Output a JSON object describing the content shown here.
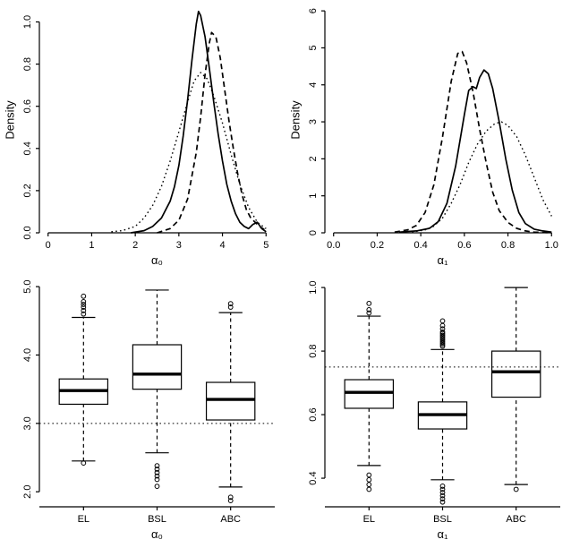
{
  "figure": {
    "background": "#ffffff",
    "line_color": "#000000",
    "grid": "off",
    "legend": "none"
  },
  "chart_data": [
    {
      "type": "line",
      "panel": "top-left",
      "title": "",
      "xlabel": "α₀",
      "ylabel": "Density",
      "xlim": [
        -0.2,
        5.2
      ],
      "ylim": [
        0,
        1.07
      ],
      "xticks": {
        "values": [
          0,
          1,
          2,
          3,
          4,
          5
        ],
        "labels": [
          "0",
          "1",
          "2",
          "3",
          "4",
          "5"
        ]
      },
      "yticks": {
        "values": [
          0,
          0.2,
          0.4,
          0.6,
          0.8,
          1.0
        ],
        "labels": [
          "0.0",
          "0.2",
          "0.4",
          "0.6",
          "0.8",
          "1.0"
        ]
      },
      "series": [
        {
          "name": "solid",
          "style": "solid",
          "points": [
            [
              1.9,
              0
            ],
            [
              2.2,
              0.01
            ],
            [
              2.4,
              0.03
            ],
            [
              2.6,
              0.07
            ],
            [
              2.8,
              0.15
            ],
            [
              2.9,
              0.22
            ],
            [
              3.0,
              0.32
            ],
            [
              3.1,
              0.46
            ],
            [
              3.2,
              0.63
            ],
            [
              3.3,
              0.82
            ],
            [
              3.4,
              0.99
            ],
            [
              3.45,
              1.05
            ],
            [
              3.5,
              1.03
            ],
            [
              3.6,
              0.93
            ],
            [
              3.7,
              0.78
            ],
            [
              3.8,
              0.62
            ],
            [
              3.9,
              0.47
            ],
            [
              4.0,
              0.34
            ],
            [
              4.1,
              0.23
            ],
            [
              4.2,
              0.15
            ],
            [
              4.3,
              0.09
            ],
            [
              4.4,
              0.05
            ],
            [
              4.5,
              0.03
            ],
            [
              4.6,
              0.02
            ],
            [
              4.7,
              0.04
            ],
            [
              4.8,
              0.05
            ],
            [
              4.9,
              0.02
            ],
            [
              5.0,
              0.005
            ]
          ]
        },
        {
          "name": "dashed",
          "style": "dashed",
          "points": [
            [
              2.5,
              0
            ],
            [
              2.8,
              0.02
            ],
            [
              3.0,
              0.06
            ],
            [
              3.2,
              0.16
            ],
            [
              3.4,
              0.38
            ],
            [
              3.5,
              0.55
            ],
            [
              3.6,
              0.75
            ],
            [
              3.7,
              0.9
            ],
            [
              3.75,
              0.95
            ],
            [
              3.85,
              0.93
            ],
            [
              3.95,
              0.83
            ],
            [
              4.05,
              0.68
            ],
            [
              4.15,
              0.53
            ],
            [
              4.25,
              0.4
            ],
            [
              4.35,
              0.28
            ],
            [
              4.45,
              0.18
            ],
            [
              4.55,
              0.11
            ],
            [
              4.65,
              0.07
            ],
            [
              4.75,
              0.05
            ],
            [
              4.85,
              0.03
            ],
            [
              5.0,
              0.01
            ]
          ]
        },
        {
          "name": "dotted",
          "style": "dotted",
          "points": [
            [
              1.45,
              0.005
            ],
            [
              1.7,
              0.01
            ],
            [
              2.0,
              0.03
            ],
            [
              2.2,
              0.07
            ],
            [
              2.4,
              0.13
            ],
            [
              2.6,
              0.22
            ],
            [
              2.8,
              0.34
            ],
            [
              3.0,
              0.48
            ],
            [
              3.2,
              0.62
            ],
            [
              3.35,
              0.72
            ],
            [
              3.5,
              0.76
            ],
            [
              3.65,
              0.73
            ],
            [
              3.8,
              0.65
            ],
            [
              4.0,
              0.52
            ],
            [
              4.2,
              0.37
            ],
            [
              4.4,
              0.23
            ],
            [
              4.6,
              0.12
            ],
            [
              4.8,
              0.05
            ],
            [
              5.0,
              0.02
            ]
          ]
        }
      ]
    },
    {
      "type": "line",
      "panel": "top-right",
      "title": "",
      "xlabel": "α₁",
      "ylabel": "Density",
      "xlim": [
        -0.04,
        1.04
      ],
      "ylim": [
        0,
        6.1
      ],
      "xticks": {
        "values": [
          0,
          0.2,
          0.4,
          0.6,
          0.8,
          1.0
        ],
        "labels": [
          "0.0",
          "0.2",
          "0.4",
          "0.6",
          "0.8",
          "1.0"
        ]
      },
      "yticks": {
        "values": [
          0,
          1,
          2,
          3,
          4,
          5,
          6
        ],
        "labels": [
          "0",
          "1",
          "2",
          "3",
          "4",
          "5",
          "6"
        ]
      },
      "series": [
        {
          "name": "solid",
          "style": "solid",
          "points": [
            [
              0.3,
              0.02
            ],
            [
              0.38,
              0.05
            ],
            [
              0.44,
              0.12
            ],
            [
              0.48,
              0.3
            ],
            [
              0.52,
              0.8
            ],
            [
              0.56,
              1.8
            ],
            [
              0.6,
              3.2
            ],
            [
              0.62,
              3.85
            ],
            [
              0.64,
              3.95
            ],
            [
              0.655,
              3.9
            ],
            [
              0.67,
              4.2
            ],
            [
              0.69,
              4.4
            ],
            [
              0.71,
              4.3
            ],
            [
              0.73,
              3.9
            ],
            [
              0.76,
              3.0
            ],
            [
              0.79,
              2.0
            ],
            [
              0.82,
              1.15
            ],
            [
              0.85,
              0.55
            ],
            [
              0.88,
              0.25
            ],
            [
              0.92,
              0.1
            ],
            [
              0.96,
              0.05
            ],
            [
              1.0,
              0.02
            ]
          ]
        },
        {
          "name": "dashed",
          "style": "dashed",
          "points": [
            [
              0.28,
              0.02
            ],
            [
              0.34,
              0.08
            ],
            [
              0.38,
              0.2
            ],
            [
              0.42,
              0.55
            ],
            [
              0.46,
              1.3
            ],
            [
              0.5,
              2.6
            ],
            [
              0.54,
              4.1
            ],
            [
              0.57,
              4.85
            ],
            [
              0.59,
              4.9
            ],
            [
              0.61,
              4.6
            ],
            [
              0.64,
              3.8
            ],
            [
              0.67,
              2.8
            ],
            [
              0.7,
              1.9
            ],
            [
              0.73,
              1.1
            ],
            [
              0.76,
              0.6
            ],
            [
              0.8,
              0.28
            ],
            [
              0.84,
              0.12
            ],
            [
              0.88,
              0.05
            ],
            [
              0.92,
              0.02
            ],
            [
              1.0,
              0.0
            ]
          ]
        },
        {
          "name": "dotted",
          "style": "dotted",
          "points": [
            [
              0.36,
              0.02
            ],
            [
              0.42,
              0.08
            ],
            [
              0.46,
              0.18
            ],
            [
              0.5,
              0.4
            ],
            [
              0.54,
              0.8
            ],
            [
              0.58,
              1.3
            ],
            [
              0.62,
              1.9
            ],
            [
              0.66,
              2.4
            ],
            [
              0.7,
              2.75
            ],
            [
              0.74,
              2.95
            ],
            [
              0.77,
              3.0
            ],
            [
              0.8,
              2.9
            ],
            [
              0.84,
              2.6
            ],
            [
              0.88,
              2.1
            ],
            [
              0.92,
              1.5
            ],
            [
              0.96,
              0.9
            ],
            [
              1.0,
              0.45
            ]
          ]
        }
      ]
    },
    {
      "type": "boxplot",
      "panel": "bottom-left",
      "title": "",
      "xlabel": "α₀",
      "ylabel": "",
      "categories": [
        "EL",
        "BSL",
        "ABC"
      ],
      "xlim": [
        0.4,
        3.6
      ],
      "ylim": [
        1.78,
        5.08
      ],
      "yticks": {
        "values": [
          2.0,
          3.0,
          4.0,
          5.0
        ],
        "labels": [
          "2.0",
          "3.0",
          "4.0",
          "5.0"
        ]
      },
      "refline": 3.0,
      "boxes": [
        {
          "category": "EL",
          "lo": 2.45,
          "q1": 3.28,
          "median": 3.48,
          "q3": 3.65,
          "hi": 4.55,
          "outliers": [
            2.42,
            4.6,
            4.65,
            4.7,
            4.74,
            4.78,
            4.86
          ]
        },
        {
          "category": "BSL",
          "lo": 2.57,
          "q1": 3.5,
          "median": 3.72,
          "q3": 4.15,
          "hi": 4.95,
          "outliers": [
            2.38,
            2.33,
            2.28,
            2.23,
            2.18,
            2.08
          ]
        },
        {
          "category": "ABC",
          "lo": 2.07,
          "q1": 3.05,
          "median": 3.35,
          "q3": 3.6,
          "hi": 4.62,
          "outliers": [
            4.7,
            4.75,
            1.92,
            1.87
          ]
        }
      ]
    },
    {
      "type": "boxplot",
      "panel": "bottom-right",
      "title": "",
      "xlabel": "α₁",
      "ylabel": "",
      "categories": [
        "EL",
        "BSL",
        "ABC"
      ],
      "xlim": [
        0.4,
        3.6
      ],
      "ylim": [
        0.31,
        1.02
      ],
      "yticks": {
        "values": [
          0.4,
          0.6,
          0.8,
          1.0
        ],
        "labels": [
          "0.4",
          "0.6",
          "0.8",
          "1.0"
        ]
      },
      "refline": 0.75,
      "boxes": [
        {
          "category": "EL",
          "lo": 0.44,
          "q1": 0.62,
          "median": 0.67,
          "q3": 0.71,
          "hi": 0.91,
          "outliers": [
            0.92,
            0.93,
            0.95,
            0.41,
            0.395,
            0.38,
            0.365
          ]
        },
        {
          "category": "BSL",
          "lo": 0.395,
          "q1": 0.555,
          "median": 0.6,
          "q3": 0.64,
          "hi": 0.805,
          "outliers": [
            0.815,
            0.82,
            0.825,
            0.83,
            0.835,
            0.84,
            0.845,
            0.85,
            0.855,
            0.86,
            0.87,
            0.88,
            0.895,
            0.375,
            0.365,
            0.355,
            0.345,
            0.335,
            0.325
          ]
        },
        {
          "category": "ABC",
          "lo": 0.38,
          "q1": 0.655,
          "median": 0.735,
          "q3": 0.8,
          "hi": 1.0,
          "outliers": [
            0.365
          ]
        }
      ]
    }
  ]
}
